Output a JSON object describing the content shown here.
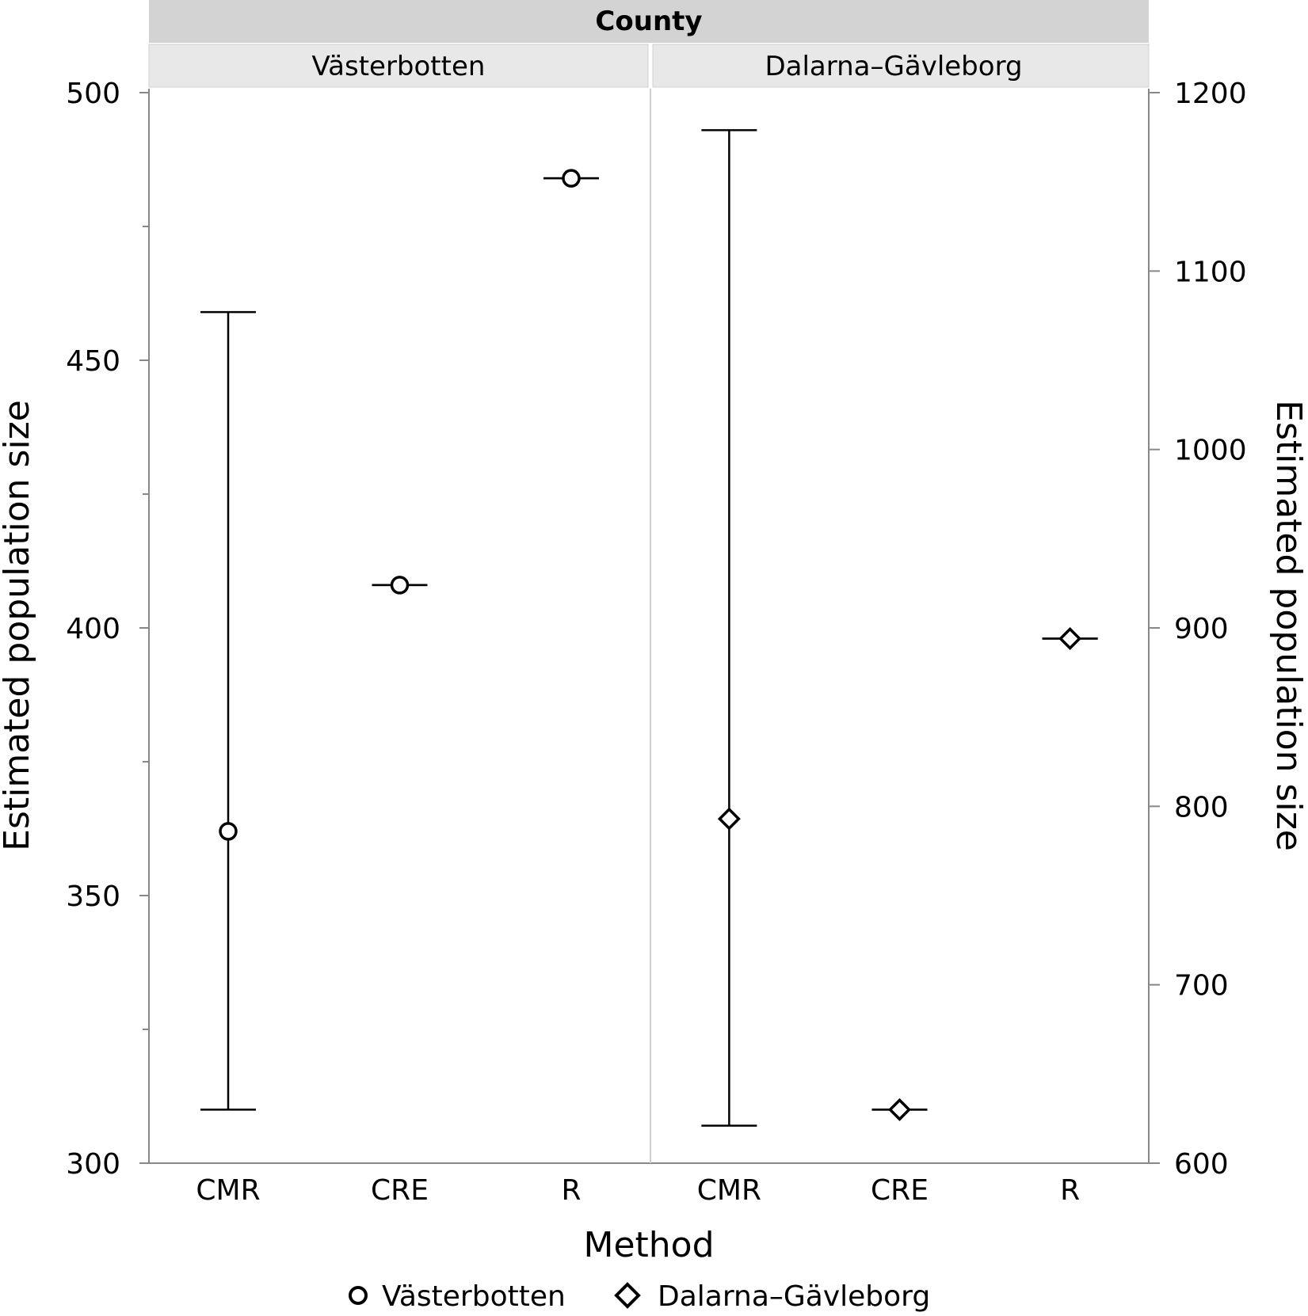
{
  "chart_data": {
    "type": "scatter",
    "facet_title": "County",
    "xlabel": "Method",
    "ylabel_left": "Estimated population size",
    "ylabel_right": "Estimated population size",
    "categories": [
      "CMR",
      "CRE",
      "R"
    ],
    "panels": [
      {
        "name": "Västerbotten",
        "marker": "circle",
        "axis": "left",
        "ylim": [
          300,
          500
        ],
        "yticks": [
          300,
          350,
          400,
          450,
          500
        ],
        "points": [
          {
            "category": "CMR",
            "value": 362,
            "lower": 310,
            "upper": 459
          },
          {
            "category": "CRE",
            "value": 408,
            "lower": 408,
            "upper": 408
          },
          {
            "category": "R",
            "value": 484,
            "lower": 484,
            "upper": 484
          }
        ]
      },
      {
        "name": "Dalarna–Gävleborg",
        "marker": "diamond",
        "axis": "right",
        "ylim": [
          600,
          1200
        ],
        "yticks": [
          600,
          700,
          800,
          900,
          1000,
          1100,
          1200
        ],
        "points": [
          {
            "category": "CMR",
            "value": 793,
            "lower": 621,
            "upper": 1179
          },
          {
            "category": "CRE",
            "value": 630,
            "lower": 630,
            "upper": 630
          },
          {
            "category": "R",
            "value": 894,
            "lower": 894,
            "upper": 894
          }
        ]
      }
    ],
    "legend": {
      "position": "bottom",
      "items": [
        {
          "label": "Västerbotten",
          "marker": "circle"
        },
        {
          "label": "Dalarna–Gävleborg",
          "marker": "diamond"
        }
      ]
    },
    "grid": false
  }
}
